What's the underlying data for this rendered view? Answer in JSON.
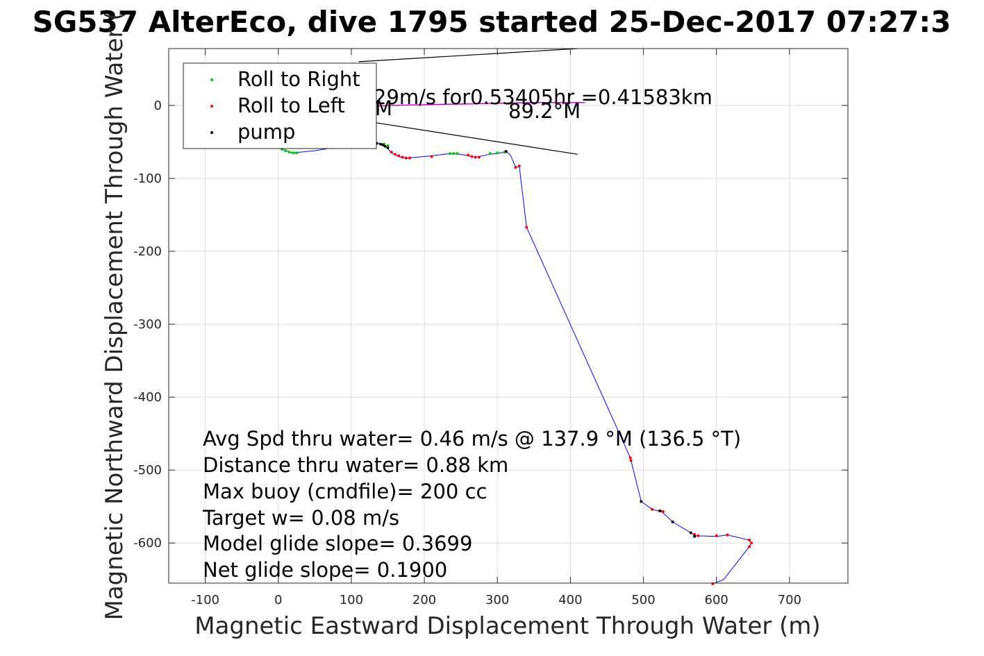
{
  "chart_data": {
    "type": "scatter",
    "title": "SG537 AlterEco, dive 1795 started 25-Dec-2017 07:27:3",
    "xlabel": "Magnetic Eastward Displacement Through Water (m)",
    "ylabel": "Magnetic Northward Displacement Through Water (",
    "xlim": [
      -150,
      780
    ],
    "ylim": [
      -655,
      78
    ],
    "grid": true,
    "legend_position": "top-left",
    "xticks": [
      -100,
      0,
      100,
      200,
      300,
      400,
      500,
      600,
      700
    ],
    "yticks": [
      0,
      -100,
      -200,
      -300,
      -400,
      -500,
      -600
    ],
    "xtick_labels": [
      "-100",
      "0",
      "100",
      "200",
      "300",
      "400",
      "500",
      "600",
      "700"
    ],
    "ytick_labels": [
      "0",
      "-100",
      "-200",
      "-300",
      "-400",
      "-500",
      "-600"
    ],
    "colors": {
      "track": "#0000ff",
      "roll_right": "#00cc00",
      "roll_left": "#ff0000",
      "pump": "#000000",
      "current": "#cc00cc",
      "annotation_line": "#000000",
      "grid": "#dcdcdc"
    },
    "legend": [
      {
        "label": "Roll to Right",
        "color": "#00cc00"
      },
      {
        "label": "Roll to Left",
        "color": "#ff0000"
      },
      {
        "label": "pump",
        "color": "#000000"
      }
    ],
    "track": {
      "x": [
        -30,
        -10,
        0,
        5,
        20,
        50,
        75,
        95,
        110,
        125,
        135,
        142,
        148,
        155,
        165,
        175,
        190,
        210,
        235,
        245,
        255,
        270,
        290,
        305,
        312,
        318,
        325,
        330,
        340,
        482,
        483,
        497,
        512,
        525,
        540,
        565,
        570,
        600,
        615,
        645,
        648,
        645,
        610,
        595
      ],
      "y": [
        -45,
        -52,
        -57,
        -60,
        -65,
        -62,
        -58,
        -55,
        -54,
        -53,
        -52,
        -53,
        -57,
        -65,
        -70,
        -72,
        -71,
        -69,
        -66,
        -66,
        -68,
        -71,
        -67,
        -65,
        -63,
        -68,
        -85,
        -83,
        -167,
        -483,
        -487,
        -543,
        -554,
        -557,
        -571,
        -586,
        -590,
        -591,
        -589,
        -596,
        -600,
        -605,
        -650,
        -656
      ]
    },
    "series": [
      {
        "name": "Roll to Right",
        "x": [
          -5,
          0,
          5,
          10,
          15,
          20,
          25,
          145,
          150,
          235,
          240,
          245,
          290,
          300,
          310
        ],
        "y": [
          -53,
          -56,
          -60,
          -62,
          -64,
          -65,
          -65,
          -53,
          -55,
          -66,
          -66,
          -66,
          -66,
          -65,
          -64
        ]
      },
      {
        "name": "Roll to Left",
        "x": [
          75,
          100,
          155,
          160,
          165,
          170,
          175,
          180,
          210,
          260,
          265,
          270,
          275,
          325,
          330,
          340,
          482,
          483,
          512,
          522,
          527,
          570,
          575,
          600,
          615,
          645,
          648,
          645,
          595
        ],
        "y": [
          -58,
          -55,
          -64,
          -67,
          -69,
          -71,
          -72,
          -72,
          -70,
          -68,
          -70,
          -71,
          -71,
          -85,
          -83,
          -167,
          -483,
          -487,
          -554,
          -556,
          -557,
          -588,
          -590,
          -590,
          -589,
          -596,
          -600,
          -605,
          -656
        ]
      },
      {
        "name": "pump",
        "x": [
          120,
          130,
          135,
          140,
          143,
          146,
          150,
          312,
          497,
          523,
          540,
          565,
          570
        ],
        "y": [
          -53,
          -52,
          -52,
          -53,
          -54,
          -56,
          -58,
          -63,
          -543,
          -556,
          -571,
          -586,
          -591
        ]
      }
    ],
    "current": {
      "x": [
        120,
        150,
        200,
        250,
        300,
        350,
        400,
        420
      ],
      "y": [
        -2,
        0,
        1,
        2,
        3,
        4,
        4,
        4
      ]
    },
    "annotation_lines": [
      {
        "x": [
          110,
          410
        ],
        "y": [
          60,
          78
        ]
      },
      {
        "x": [
          110,
          410
        ],
        "y": [
          -20,
          -67
        ]
      }
    ],
    "annotations": {
      "current_text": "29m/s for0.53405hr =0.41583km",
      "heading_text": "89.2°M",
      "partial_text": "M"
    },
    "stats": [
      "Avg Spd thru water=  0.46 m/s @ 137.9 °M (136.5 °T)",
      "Distance thru water=  0.88 km",
      "Max buoy (cmdfile)= 200 cc",
      "Target w= 0.08 m/s",
      "Model glide slope= 0.3699",
      "Net glide slope= 0.1900"
    ]
  }
}
